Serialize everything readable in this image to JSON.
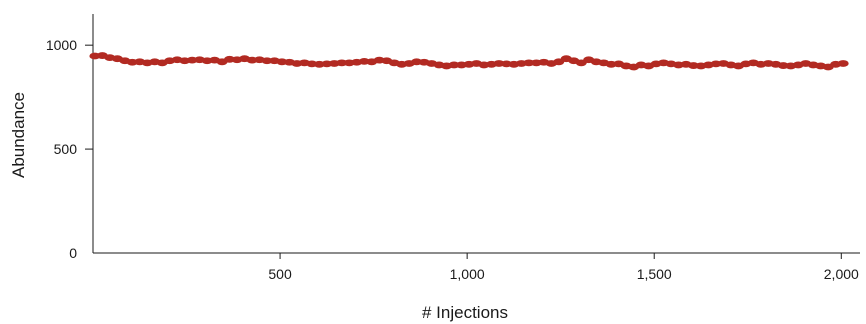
{
  "chart_data": {
    "type": "scatter",
    "title": "",
    "xlabel": "# Injections",
    "ylabel": "Abundance",
    "xlim": [
      0,
      2050
    ],
    "ylim": [
      0,
      1150
    ],
    "x_ticks": [
      500,
      1000,
      1500,
      2000
    ],
    "x_tick_labels": [
      "500",
      "1,000",
      "1,500",
      "2,000"
    ],
    "y_ticks": [
      0,
      500,
      1000
    ],
    "y_tick_labels": [
      "0",
      "500",
      "1000"
    ],
    "grid": false,
    "legend": "none",
    "marker_color": "#b22a22",
    "series": [
      {
        "x": [
          5,
          25,
          45,
          65,
          85,
          105,
          125,
          145,
          165,
          185,
          205,
          225,
          245,
          265,
          285,
          305,
          325,
          345,
          365,
          385,
          405,
          425,
          445,
          465,
          485,
          505,
          525,
          545,
          565,
          585,
          605,
          625,
          645,
          665,
          685,
          705,
          725,
          745,
          765,
          785,
          805,
          825,
          845,
          865,
          885,
          905,
          925,
          945,
          965,
          985,
          1005,
          1025,
          1045,
          1065,
          1085,
          1105,
          1125,
          1145,
          1165,
          1185,
          1205,
          1225,
          1245,
          1265,
          1285,
          1305,
          1325,
          1345,
          1365,
          1385,
          1405,
          1425,
          1445,
          1465,
          1485,
          1505,
          1525,
          1545,
          1565,
          1585,
          1605,
          1625,
          1645,
          1665,
          1685,
          1705,
          1725,
          1745,
          1765,
          1785,
          1805,
          1825,
          1845,
          1865,
          1885,
          1905,
          1925,
          1945,
          1965,
          1985,
          2005
        ],
        "y": [
          948,
          950,
          940,
          935,
          925,
          918,
          920,
          915,
          920,
          915,
          925,
          930,
          925,
          928,
          930,
          925,
          928,
          920,
          932,
          930,
          935,
          928,
          930,
          925,
          925,
          920,
          918,
          912,
          915,
          910,
          908,
          910,
          912,
          915,
          915,
          918,
          922,
          920,
          928,
          925,
          915,
          908,
          912,
          920,
          918,
          912,
          905,
          900,
          905,
          905,
          908,
          912,
          905,
          908,
          912,
          910,
          908,
          912,
          915,
          915,
          918,
          912,
          920,
          935,
          925,
          915,
          930,
          920,
          915,
          908,
          910,
          900,
          895,
          905,
          900,
          910,
          915,
          910,
          905,
          908,
          902,
          900,
          905,
          910,
          912,
          905,
          900,
          910,
          915,
          908,
          912,
          908,
          902,
          900,
          905,
          912,
          905,
          900,
          895,
          908,
          912
        ]
      }
    ]
  }
}
